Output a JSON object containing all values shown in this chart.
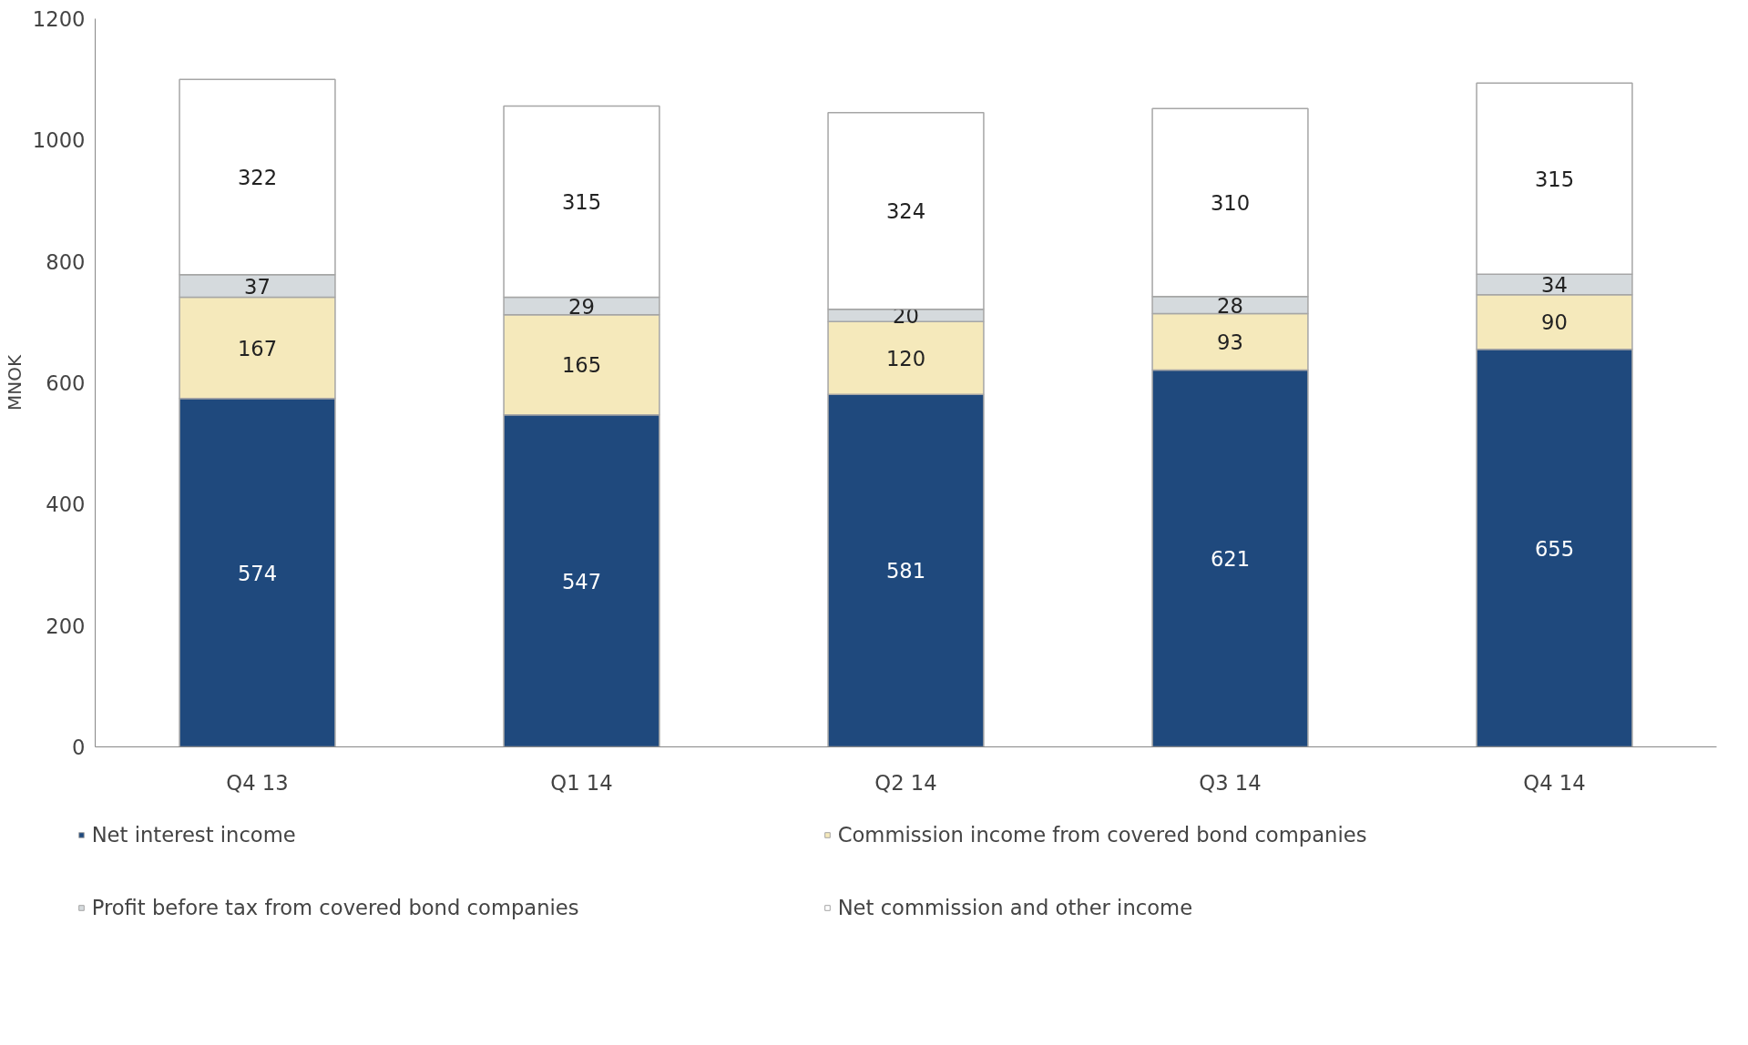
{
  "chart_data": {
    "type": "bar",
    "stacked": true,
    "ylabel": "MNOK",
    "categories": [
      "Q4 13",
      "Q1 14",
      "Q2 14",
      "Q3 14",
      "Q4 14"
    ],
    "series": [
      {
        "name": "Net interest income",
        "color": "#1f497d",
        "values": [
          574,
          547,
          581,
          621,
          655
        ]
      },
      {
        "name": "Commission income from covered bond companies",
        "color": "#f5e9bb",
        "values": [
          167,
          165,
          120,
          93,
          90
        ]
      },
      {
        "name": "Profit before tax from covered bond companies",
        "color": "#d5dadd",
        "values": [
          37,
          29,
          20,
          28,
          34
        ]
      },
      {
        "name": "Net commission and other income",
        "color": "#ffffff",
        "values": [
          322,
          315,
          324,
          310,
          315
        ]
      }
    ],
    "ylim": [
      0,
      1200
    ],
    "yticks": [
      0,
      200,
      400,
      600,
      800,
      1000,
      1200
    ],
    "data_labels": true,
    "grid": false,
    "legend": "bottom"
  }
}
